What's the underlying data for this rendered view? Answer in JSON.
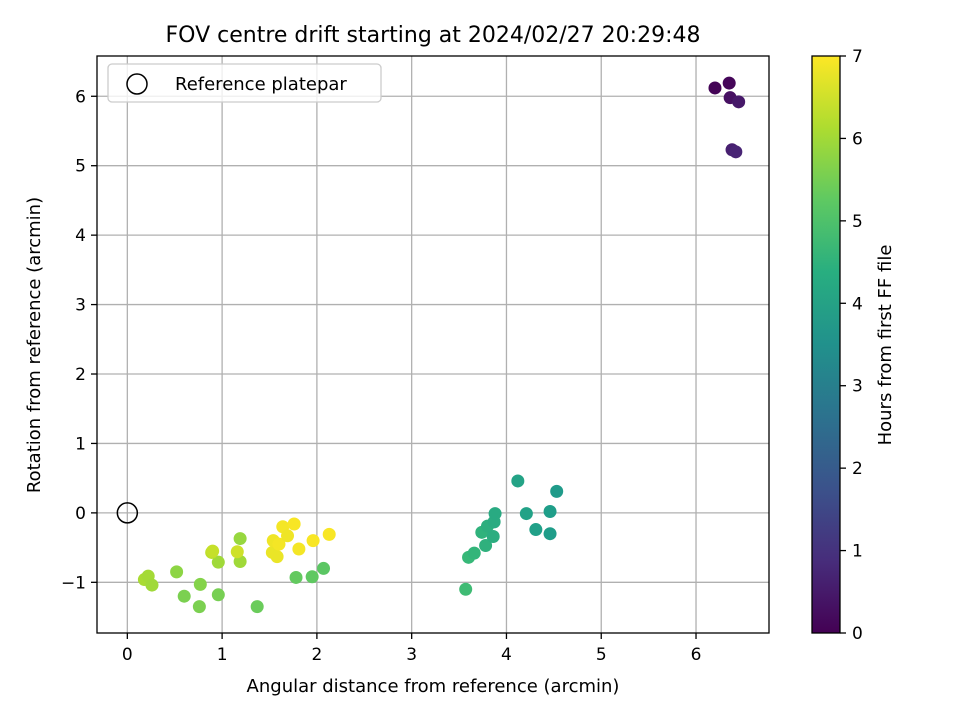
{
  "chart_data": {
    "type": "scatter",
    "title": "FOV centre drift starting at 2024/02/27 20:29:48",
    "xlabel": "Angular distance from reference (arcmin)",
    "ylabel": "Rotation from reference (arcmin)",
    "xlim": [
      -0.32,
      6.77
    ],
    "ylim": [
      -1.73,
      6.58
    ],
    "xticks": [
      0,
      1,
      2,
      3,
      4,
      5,
      6
    ],
    "yticks": [
      -1,
      0,
      1,
      2,
      3,
      4,
      5,
      6
    ],
    "xtick_labels": [
      "0",
      "1",
      "2",
      "3",
      "4",
      "5",
      "6"
    ],
    "ytick_labels": [
      "−1",
      "0",
      "1",
      "2",
      "3",
      "4",
      "5",
      "6"
    ],
    "grid": true,
    "legend": {
      "placement": "top-left",
      "entries": [
        "Reference platepar"
      ]
    },
    "reference_point": {
      "x": 0,
      "y": 0
    },
    "colorbar": {
      "label": "Hours from first FF file",
      "colormap": "viridis",
      "range": [
        0,
        7
      ],
      "ticks": [
        0,
        1,
        2,
        3,
        4,
        5,
        6,
        7
      ],
      "tick_labels": [
        "0",
        "1",
        "2",
        "3",
        "4",
        "5",
        "6",
        "7"
      ]
    },
    "points": [
      {
        "x": 6.2,
        "y": 6.12,
        "c": 0.05
      },
      {
        "x": 6.35,
        "y": 6.19,
        "c": 0.1
      },
      {
        "x": 6.36,
        "y": 5.98,
        "c": 0.3
      },
      {
        "x": 6.45,
        "y": 5.92,
        "c": 0.45
      },
      {
        "x": 6.38,
        "y": 5.23,
        "c": 0.6
      },
      {
        "x": 6.42,
        "y": 5.2,
        "c": 0.7
      },
      {
        "x": 3.57,
        "y": -1.1,
        "c": 4.8
      },
      {
        "x": 3.6,
        "y": -0.64,
        "c": 4.7
      },
      {
        "x": 3.66,
        "y": -0.58,
        "c": 4.6
      },
      {
        "x": 3.74,
        "y": -0.28,
        "c": 4.5
      },
      {
        "x": 3.78,
        "y": -0.47,
        "c": 4.45
      },
      {
        "x": 3.8,
        "y": -0.19,
        "c": 4.4
      },
      {
        "x": 3.86,
        "y": -0.34,
        "c": 4.35
      },
      {
        "x": 3.87,
        "y": -0.13,
        "c": 4.3
      },
      {
        "x": 3.88,
        "y": -0.01,
        "c": 4.25
      },
      {
        "x": 4.12,
        "y": 0.46,
        "c": 4.05
      },
      {
        "x": 4.21,
        "y": -0.01,
        "c": 4.0
      },
      {
        "x": 4.31,
        "y": -0.24,
        "c": 3.95
      },
      {
        "x": 4.46,
        "y": 0.02,
        "c": 3.9
      },
      {
        "x": 4.46,
        "y": -0.3,
        "c": 3.85
      },
      {
        "x": 4.53,
        "y": 0.31,
        "c": 3.8
      },
      {
        "x": 0.76,
        "y": -1.35,
        "c": 5.6
      },
      {
        "x": 0.6,
        "y": -1.2,
        "c": 5.6
      },
      {
        "x": 0.96,
        "y": -1.18,
        "c": 5.55
      },
      {
        "x": 1.37,
        "y": -1.35,
        "c": 5.4
      },
      {
        "x": 1.78,
        "y": -0.93,
        "c": 5.3
      },
      {
        "x": 1.95,
        "y": -0.92,
        "c": 5.25
      },
      {
        "x": 2.07,
        "y": -0.8,
        "c": 5.2
      },
      {
        "x": 0.52,
        "y": -0.85,
        "c": 5.8
      },
      {
        "x": 0.77,
        "y": -1.03,
        "c": 5.7
      },
      {
        "x": 0.18,
        "y": -0.96,
        "c": 6.1
      },
      {
        "x": 0.22,
        "y": -0.91,
        "c": 6.05
      },
      {
        "x": 0.26,
        "y": -1.04,
        "c": 6.0
      },
      {
        "x": 0.96,
        "y": -0.71,
        "c": 6.0
      },
      {
        "x": 1.19,
        "y": -0.37,
        "c": 5.9
      },
      {
        "x": 1.19,
        "y": -0.7,
        "c": 6.0
      },
      {
        "x": 0.89,
        "y": -0.57,
        "c": 6.3
      },
      {
        "x": 0.9,
        "y": -0.55,
        "c": 6.4
      },
      {
        "x": 1.16,
        "y": -0.56,
        "c": 6.5
      },
      {
        "x": 1.53,
        "y": -0.57,
        "c": 6.8
      },
      {
        "x": 1.54,
        "y": -0.4,
        "c": 6.85
      },
      {
        "x": 1.58,
        "y": -0.63,
        "c": 6.8
      },
      {
        "x": 1.6,
        "y": -0.45,
        "c": 6.9
      },
      {
        "x": 1.64,
        "y": -0.2,
        "c": 6.9
      },
      {
        "x": 1.69,
        "y": -0.33,
        "c": 6.85
      },
      {
        "x": 1.76,
        "y": -0.16,
        "c": 6.95
      },
      {
        "x": 1.81,
        "y": -0.52,
        "c": 6.9
      },
      {
        "x": 1.96,
        "y": -0.4,
        "c": 6.95
      },
      {
        "x": 2.13,
        "y": -0.31,
        "c": 6.95
      }
    ]
  }
}
